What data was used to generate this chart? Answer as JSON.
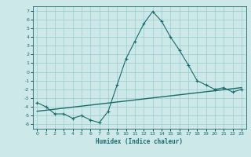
{
  "title": "",
  "xlabel": "Humidex (Indice chaleur)",
  "bg_color": "#cce8e8",
  "grid_color": "#99cccc",
  "line_color": "#1a6b6b",
  "xlim": [
    -0.5,
    23.5
  ],
  "ylim": [
    -6.5,
    7.5
  ],
  "xticks": [
    0,
    1,
    2,
    3,
    4,
    5,
    6,
    7,
    8,
    9,
    10,
    11,
    12,
    13,
    14,
    15,
    16,
    17,
    18,
    19,
    20,
    21,
    22,
    23
  ],
  "yticks": [
    -6,
    -5,
    -4,
    -3,
    -2,
    -1,
    0,
    1,
    2,
    3,
    4,
    5,
    6,
    7
  ],
  "curve_x": [
    0,
    1,
    2,
    3,
    4,
    5,
    6,
    7,
    8,
    9,
    10,
    11,
    12,
    13,
    14,
    15,
    16,
    17,
    18,
    19,
    20,
    21,
    22,
    23
  ],
  "curve_y": [
    -3.5,
    -4.0,
    -4.8,
    -4.8,
    -5.3,
    -5.0,
    -5.5,
    -5.8,
    -4.5,
    -1.5,
    1.5,
    3.5,
    5.5,
    6.9,
    5.8,
    4.0,
    2.5,
    0.8,
    -1.0,
    -1.5,
    -2.0,
    -1.8,
    -2.3,
    -2.0
  ],
  "trend_x": [
    0,
    23
  ],
  "trend_y": [
    -4.5,
    -1.8
  ]
}
